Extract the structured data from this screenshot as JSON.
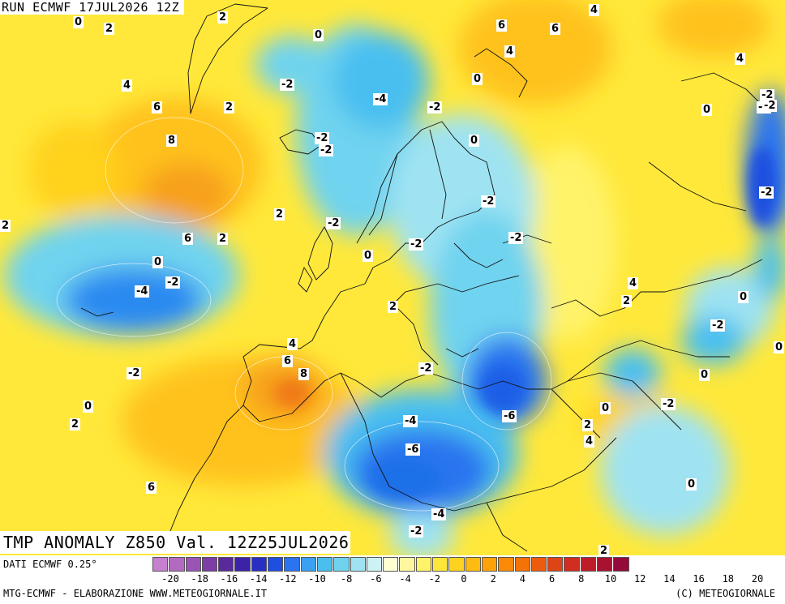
{
  "header": {
    "run_label": "RUN ECMWF 17JUL2026 12Z"
  },
  "title": {
    "text": "TMP ANOMALY Z850 Val. 12Z25JUL2026"
  },
  "footer": {
    "data_source": "DATI ECMWF 0.25°",
    "credit_left": "MTG-ECMWF - ELABORAZIONE WWW.METEOGIORNALE.IT",
    "credit_right": "(C) METEOGIORNALE"
  },
  "legend": {
    "colors": [
      "#c77fd0",
      "#b26ac1",
      "#9a55b4",
      "#7d3ca6",
      "#5a2a9c",
      "#3c22a8",
      "#2a2fc4",
      "#1f4fe0",
      "#2a74ef",
      "#3aa0f2",
      "#49bff0",
      "#6fd3ef",
      "#9fe3f2",
      "#cdf2f5",
      "#ffffd0",
      "#fff7a0",
      "#fff36a",
      "#ffe63a",
      "#ffd21e",
      "#ffbb12",
      "#ffa20a",
      "#fb8a06",
      "#f57207",
      "#ed5c0c",
      "#df4417",
      "#cf2e20",
      "#be1c28",
      "#a91130",
      "#940a38"
    ],
    "tick_labels": [
      "-20",
      "-18",
      "-16",
      "-14",
      "-12",
      "-10",
      "-8",
      "-6",
      "-4",
      "-2",
      "0",
      "2",
      "4",
      "6",
      "8",
      "10",
      "12",
      "14",
      "16",
      "18",
      "20"
    ]
  },
  "map_labels": [
    {
      "id": "l1",
      "text": "0"
    },
    {
      "id": "l2",
      "text": "2"
    },
    {
      "id": "l3",
      "text": "2"
    },
    {
      "id": "l4",
      "text": "0"
    },
    {
      "id": "l5",
      "text": "4"
    },
    {
      "id": "l6",
      "text": "2"
    },
    {
      "id": "l7",
      "text": "4"
    },
    {
      "id": "l8",
      "text": "6"
    },
    {
      "id": "l9",
      "text": "2"
    },
    {
      "id": "l10",
      "text": "-2"
    },
    {
      "id": "l11",
      "text": "-4"
    },
    {
      "id": "l12",
      "text": "-2"
    },
    {
      "id": "l13",
      "text": "8"
    },
    {
      "id": "l14",
      "text": "-2"
    },
    {
      "id": "l15",
      "text": "-2"
    },
    {
      "id": "l16",
      "text": "0"
    },
    {
      "id": "l17",
      "text": "6"
    },
    {
      "id": "l18",
      "text": "4"
    },
    {
      "id": "l19",
      "text": "6"
    },
    {
      "id": "l20",
      "text": "0"
    },
    {
      "id": "l21",
      "text": "-2"
    },
    {
      "id": "l22",
      "text": "-4"
    },
    {
      "id": "l23",
      "text": "0"
    },
    {
      "id": "l24",
      "text": "-2"
    },
    {
      "id": "l25",
      "text": "-2"
    },
    {
      "id": "l26",
      "text": "2"
    },
    {
      "id": "l27",
      "text": "-2"
    },
    {
      "id": "l28",
      "text": "2"
    },
    {
      "id": "l29",
      "text": "6"
    },
    {
      "id": "l30",
      "text": "4"
    },
    {
      "id": "l31",
      "text": "0"
    },
    {
      "id": "l32",
      "text": "-2"
    },
    {
      "id": "l33",
      "text": "-4"
    },
    {
      "id": "l34",
      "text": "2"
    },
    {
      "id": "l35",
      "text": "-2"
    },
    {
      "id": "l36",
      "text": "0"
    },
    {
      "id": "l37",
      "text": "-2"
    },
    {
      "id": "l38",
      "text": "4"
    },
    {
      "id": "l39",
      "text": "6"
    },
    {
      "id": "l40",
      "text": "8"
    },
    {
      "id": "l41",
      "text": "-2"
    },
    {
      "id": "l42",
      "text": "-2"
    },
    {
      "id": "l43",
      "text": "0"
    },
    {
      "id": "l44",
      "text": "2"
    },
    {
      "id": "l45",
      "text": "-4"
    },
    {
      "id": "l46",
      "text": "-6"
    },
    {
      "id": "l47",
      "text": "-6"
    },
    {
      "id": "l48",
      "text": "-4"
    },
    {
      "id": "l49",
      "text": "-2"
    },
    {
      "id": "l50",
      "text": "6"
    },
    {
      "id": "l51",
      "text": "4"
    },
    {
      "id": "l52",
      "text": "2"
    },
    {
      "id": "l53",
      "text": "0"
    },
    {
      "id": "l54",
      "text": "-2"
    },
    {
      "id": "l55",
      "text": "0"
    },
    {
      "id": "l56",
      "text": "0"
    },
    {
      "id": "l57",
      "text": "4"
    },
    {
      "id": "l58",
      "text": "0"
    },
    {
      "id": "l59",
      "text": "2"
    },
    {
      "id": "l60",
      "text": "-2"
    },
    {
      "id": "l61",
      "text": "0"
    },
    {
      "id": "l62",
      "text": "2"
    },
    {
      "id": "l63",
      "text": "-2"
    },
    {
      "id": "l64",
      "text": "2"
    }
  ]
}
